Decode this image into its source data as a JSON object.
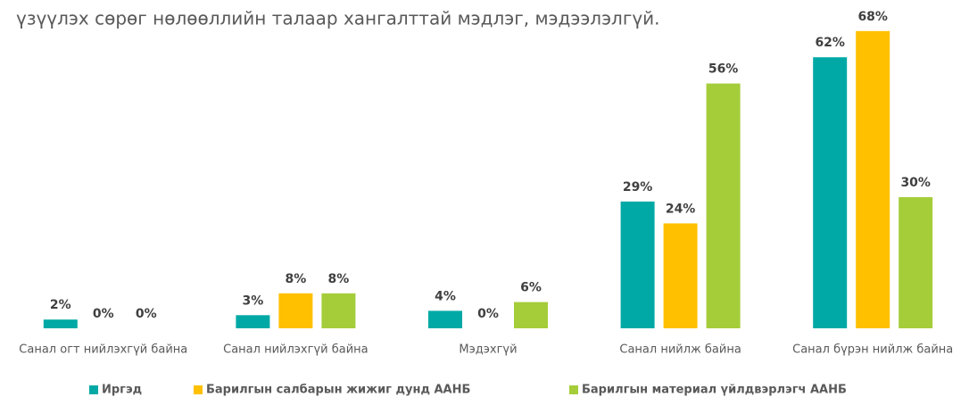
{
  "chart_data": {
    "type": "bar",
    "title": "үзүүлэх сөрөг нөлөөллийн талаар хангалттай мэдлэг, мэдээлэлгүй.",
    "categories": [
      "Санал огт нийлэхгүй байна",
      "Санал нийлэхгүй байна",
      "Мэдэхгүй",
      "Санал нийлж байна",
      "Санал бүрэн нийлж байна"
    ],
    "series": [
      {
        "name": "Иргэд",
        "color": "#00a9a5",
        "values": [
          2,
          3,
          4,
          29,
          62
        ],
        "value_labels": [
          "2%",
          "3%",
          "4%",
          "29%",
          "62%"
        ]
      },
      {
        "name": "Барилгын салбарын жижиг дунд ААНБ",
        "color": "#ffc000",
        "values": [
          0,
          8,
          0,
          24,
          68
        ],
        "value_labels": [
          "0%",
          "8%",
          "0%",
          "24%",
          "68%"
        ]
      },
      {
        "name": "Барилгын материал үйлдвэрлэгч ААНБ",
        "color": "#a5cd39",
        "values": [
          0,
          8,
          6,
          56,
          30
        ],
        "value_labels": [
          "0%",
          "8%",
          "6%",
          "56%",
          "30%"
        ]
      }
    ],
    "legend": "bottom"
  }
}
